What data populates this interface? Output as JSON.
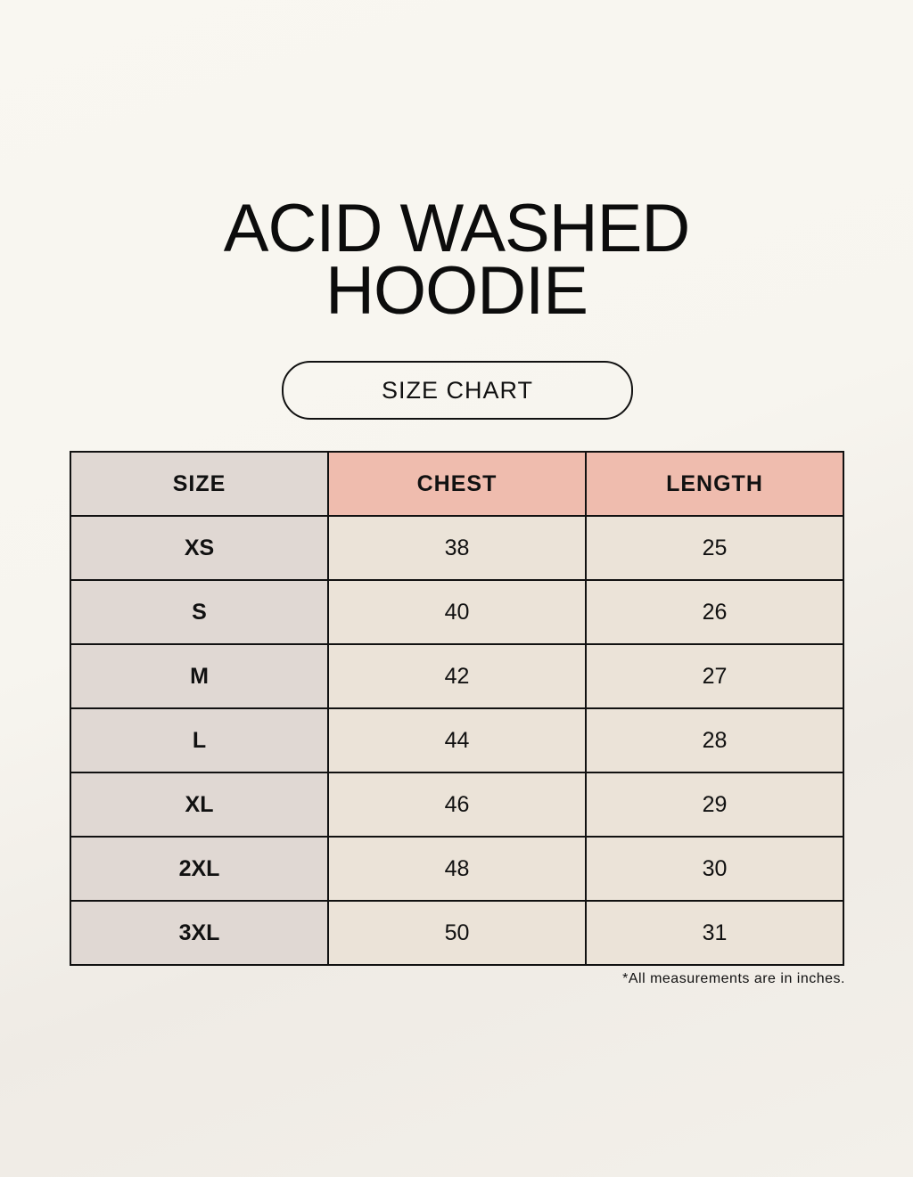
{
  "title": {
    "line1": "ACID WASHED",
    "line2": "HOODIE"
  },
  "subtitle": "SIZE CHART",
  "table": {
    "headers": [
      "SIZE",
      "CHEST",
      "LENGTH"
    ],
    "rows": [
      [
        "XS",
        "38",
        "25"
      ],
      [
        "S",
        "40",
        "26"
      ],
      [
        "M",
        "42",
        "27"
      ],
      [
        "L",
        "44",
        "28"
      ],
      [
        "XL",
        "46",
        "29"
      ],
      [
        "2XL",
        "48",
        "30"
      ],
      [
        "3XL",
        "50",
        "31"
      ]
    ]
  },
  "note": "*All measurements are in inches.",
  "colors": {
    "size_column": "#e0d8d3",
    "header_accent": "#efbcae",
    "cell": "#ebe3d8",
    "background": "#f8f6f0"
  }
}
